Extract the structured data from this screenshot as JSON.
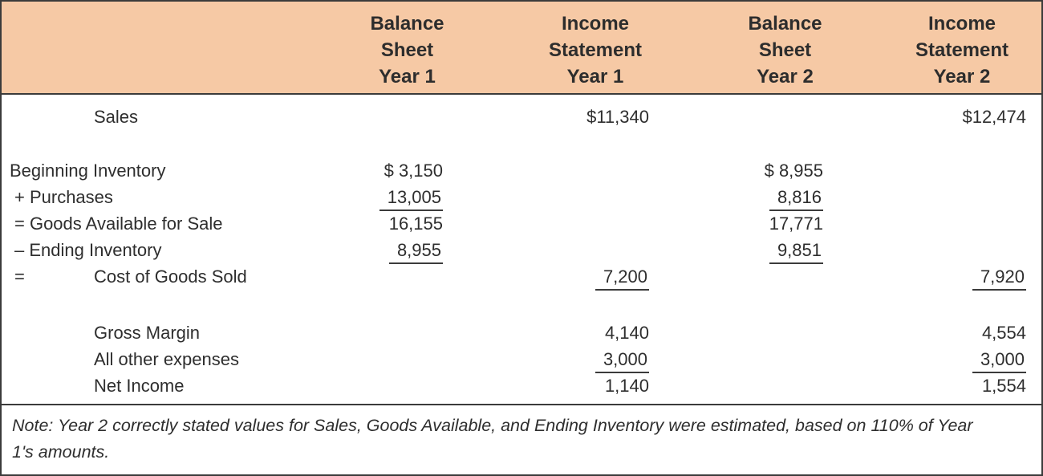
{
  "colors": {
    "header_bg": "#F6C9A5",
    "border": "#3B3B3B",
    "text": "#2E2E2E"
  },
  "header": {
    "columns": [
      "Balance\nSheet\nYear 1",
      "Income\nStatement\nYear 1",
      "Balance\nSheet\nYear 2",
      "Income\nStatement\nYear 2"
    ]
  },
  "rows": [
    {
      "label": "Sales",
      "is1": "$11,340",
      "is2": "$12,474"
    },
    {
      "label": "Beginning Inventory",
      "bs1": "$ 3,150",
      "bs2": "$ 8,955"
    },
    {
      "label": "+ Purchases",
      "bs1": "13,005",
      "bs2": "8,816"
    },
    {
      "label": "= Goods Available for Sale",
      "bs1": "16,155",
      "bs2": "17,771"
    },
    {
      "label": "– Ending Inventory",
      "bs1": "8,955",
      "bs2": "9,851"
    },
    {
      "prefix": "=",
      "label": "Cost of Goods Sold",
      "is1": "7,200",
      "is2": "7,920"
    },
    {
      "label": "Gross Margin",
      "is1": "4,140",
      "is2": "4,554"
    },
    {
      "label": "All other expenses",
      "is1": "3,000",
      "is2": "3,000"
    },
    {
      "label": "Net Income",
      "is1": "1,140",
      "is2": "1,554"
    }
  ],
  "note": "Note: Year 2 correctly stated values for Sales, Goods Available, and Ending Inventory were estimated, based on 110% of Year 1's amounts."
}
